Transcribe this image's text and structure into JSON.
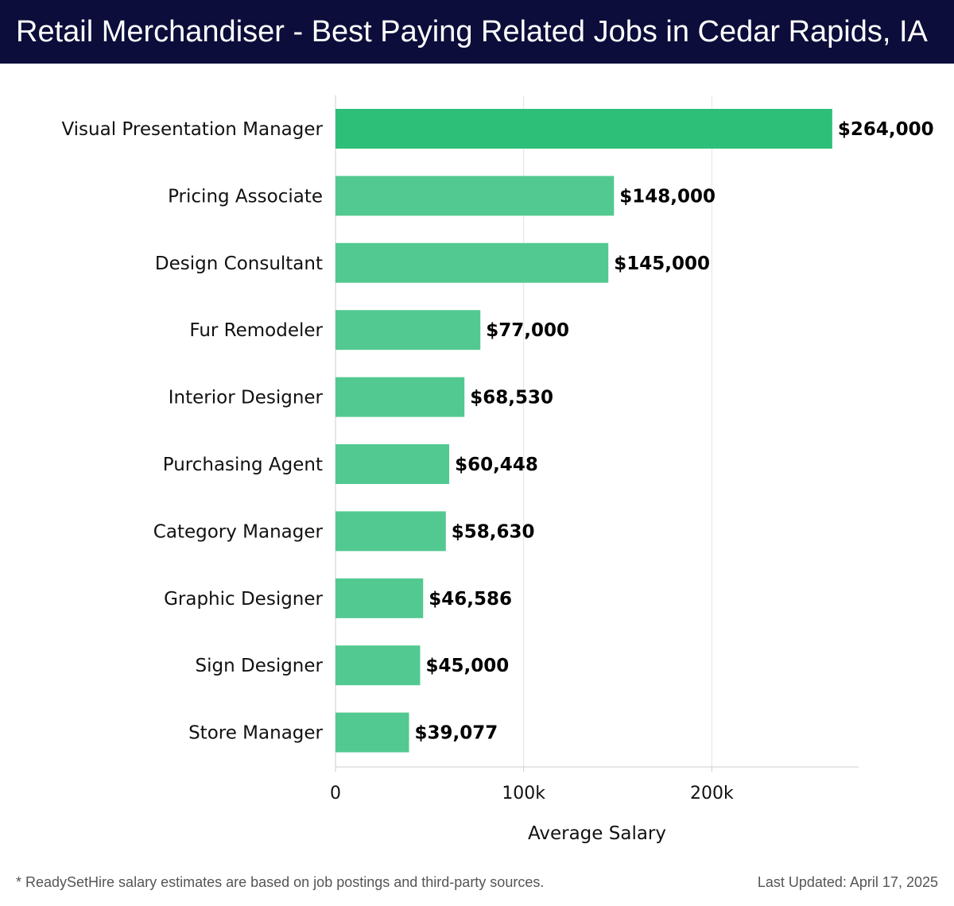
{
  "header": {
    "title": "Retail Merchandiser - Best Paying Related Jobs in Cedar Rapids, IA"
  },
  "footer": {
    "note": "* ReadySetHire salary estimates are based on job postings and third-party sources.",
    "updated": "Last Updated: April 17, 2025"
  },
  "colors": {
    "header_bg": "#0c0d3a",
    "bar_top": "#2dbf78",
    "bar": "#52c990",
    "grid": "#e2e2e2",
    "axis": "#cccccc"
  },
  "chart_data": {
    "type": "bar",
    "orientation": "horizontal",
    "title": "Retail Merchandiser - Best Paying Related Jobs in Cedar Rapids, IA",
    "xlabel": "Average Salary",
    "ylabel": "",
    "xlim": [
      0,
      278000
    ],
    "grid": true,
    "categories": [
      "Visual Presentation Manager",
      "Pricing Associate",
      "Design Consultant",
      "Fur Remodeler",
      "Interior Designer",
      "Purchasing Agent",
      "Category Manager",
      "Graphic Designer",
      "Sign Designer",
      "Store Manager"
    ],
    "values": [
      264000,
      148000,
      145000,
      77000,
      68530,
      60448,
      58630,
      46586,
      45000,
      39077
    ],
    "value_labels": [
      "$264,000",
      "$148,000",
      "$145,000",
      "$77,000",
      "$68,530",
      "$60,448",
      "$58,630",
      "$46,586",
      "$45,000",
      "$39,077"
    ],
    "x_ticks": [
      0,
      100000,
      200000
    ],
    "x_tick_labels": [
      "0",
      "100k",
      "200k"
    ]
  }
}
